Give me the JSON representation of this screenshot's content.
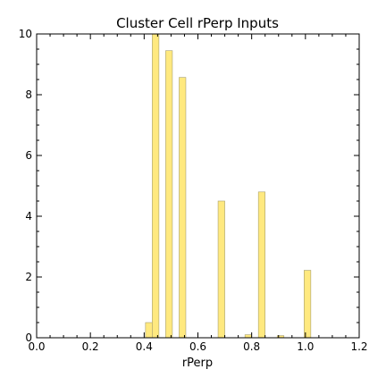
{
  "chart_data": {
    "type": "bar",
    "title": "Cluster Cell rPerp Inputs",
    "xlabel": "rPerp",
    "ylabel": "",
    "xlim": [
      0.0,
      1.2
    ],
    "ylim": [
      0,
      10
    ],
    "xticks": [
      "0.0",
      "0.2",
      "0.4",
      "0.6",
      "0.8",
      "1.0",
      "1.2"
    ],
    "yticks": [
      "0",
      "2",
      "4",
      "6",
      "8",
      "10"
    ],
    "bin_width": 0.025,
    "bins": [
      {
        "x": 0.405,
        "value": 0.5
      },
      {
        "x": 0.43,
        "value": 10.0
      },
      {
        "x": 0.48,
        "value": 9.45
      },
      {
        "x": 0.53,
        "value": 8.57
      },
      {
        "x": 0.675,
        "value": 4.5
      },
      {
        "x": 0.775,
        "value": 0.1
      },
      {
        "x": 0.825,
        "value": 4.8
      },
      {
        "x": 0.895,
        "value": 0.07
      },
      {
        "x": 0.995,
        "value": 2.22
      }
    ],
    "grid": false,
    "colors": {
      "bar_fill": "#ffe97f",
      "bar_edge": "#a8a070"
    }
  }
}
